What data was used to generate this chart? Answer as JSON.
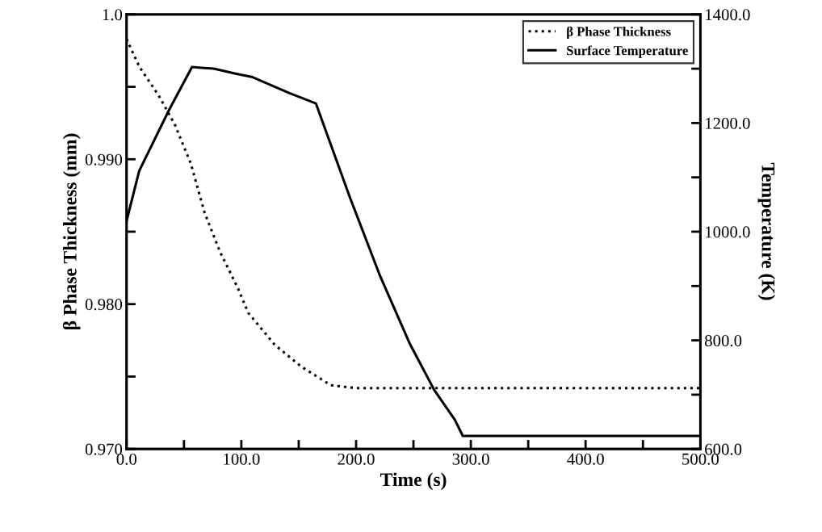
{
  "chart_data": {
    "type": "line",
    "xlabel": "Time (s)",
    "ylabel": "β Phase Thickness (mm)",
    "y2label": "Temperature (K)",
    "xlim": [
      0,
      500
    ],
    "xticks": [
      {
        "value": 0,
        "label": "0.0"
      },
      {
        "value": 50,
        "label": null
      },
      {
        "value": 100,
        "label": "100.0"
      },
      {
        "value": 150,
        "label": null
      },
      {
        "value": 200,
        "label": "200.0"
      },
      {
        "value": 250,
        "label": null
      },
      {
        "value": 300,
        "label": "300.0"
      },
      {
        "value": 350,
        "label": null
      },
      {
        "value": 400,
        "label": "400.0"
      },
      {
        "value": 450,
        "label": null
      },
      {
        "value": 500,
        "label": "500.0"
      }
    ],
    "ylim": [
      0.97,
      1.0
    ],
    "yticks": [
      {
        "value": 0.97,
        "label": "0.970"
      },
      {
        "value": 0.975,
        "label": null
      },
      {
        "value": 0.98,
        "label": "0.980"
      },
      {
        "value": 0.985,
        "label": null
      },
      {
        "value": 0.99,
        "label": "0.990"
      },
      {
        "value": 0.995,
        "label": null
      },
      {
        "value": 1.0,
        "label": "1.0"
      }
    ],
    "y2lim": [
      600,
      1400
    ],
    "y2ticks": [
      {
        "value": 600,
        "label": "600.0"
      },
      {
        "value": 700,
        "label": null
      },
      {
        "value": 800,
        "label": "800.0"
      },
      {
        "value": 900,
        "label": null
      },
      {
        "value": 1000,
        "label": "1000.0"
      },
      {
        "value": 1100,
        "label": null
      },
      {
        "value": 1200,
        "label": "1200.0"
      },
      {
        "value": 1300,
        "label": null
      },
      {
        "value": 1400,
        "label": "1400.0"
      }
    ],
    "grid": false,
    "legend": "top right",
    "marker": "none",
    "series": [
      {
        "name": "β Phase Thickness",
        "color": "#000000",
        "line_style": "dotted",
        "x": [
          0,
          4,
          11,
          28,
          42,
          56,
          68,
          82,
          89,
          97,
          106,
          129,
          152,
          178,
          200,
          500
        ],
        "values": [
          0.9983,
          0.9976,
          0.9964,
          0.9944,
          0.9924,
          0.9897,
          0.9863,
          0.9835,
          0.9824,
          0.9811,
          0.9794,
          0.9772,
          0.9757,
          0.9744,
          0.9742,
          0.9742
        ]
      },
      {
        "name": "Surface Temperature",
        "color": "#000000",
        "line_style": "solid",
        "axis": "y2",
        "x": [
          0,
          11,
          37,
          57,
          76,
          95,
          109,
          142,
          165,
          195,
          221,
          247,
          268,
          286,
          293,
          500
        ],
        "values": [
          1020,
          1112,
          1224,
          1303,
          1300,
          1291,
          1285,
          1255,
          1236,
          1061,
          918,
          793,
          709,
          654,
          624,
          624
        ]
      }
    ]
  }
}
